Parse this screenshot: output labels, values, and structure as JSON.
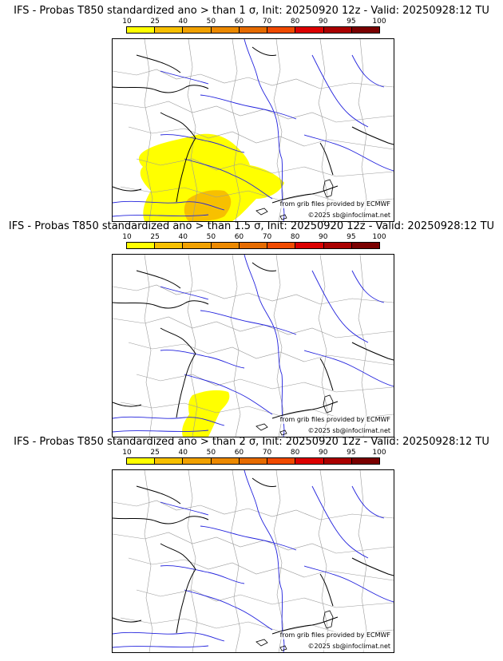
{
  "legend": {
    "ticks": [
      "10",
      "25",
      "40",
      "50",
      "60",
      "70",
      "80",
      "90",
      "95",
      "100"
    ],
    "colors": [
      "#ffff00",
      "#f7c000",
      "#f1a100",
      "#ec8900",
      "#e66b00",
      "#f04a00",
      "#dc0000",
      "#aa0000",
      "#7a0000"
    ]
  },
  "panels": [
    {
      "title": "IFS - Probas T850  standardized ano > than 1 σ, Init: 20250920 12z - Valid: 20250928:12 TU",
      "source": "from grib files provided by ECMWF",
      "copyright": "©2025 sb@infoclimat.net"
    },
    {
      "title": "IFS - Probas T850  standardized ano > than 1.5 σ, Init: 20250920 12z - Valid: 20250928:12 TU",
      "source": "from grib files provided by ECMWF",
      "copyright": "©2025 sb@infoclimat.net"
    },
    {
      "title": "IFS - Probas T850  standardized ano > than 2 σ, Init: 20250920 12z - Valid: 20250928:12 TU",
      "source": "from grib files provided by ECMWF",
      "copyright": "©2025 sb@infoclimat.net"
    }
  ],
  "colors": {
    "coast": "#000000",
    "rivers": "#2222dd",
    "borders": "#9a9a9a"
  }
}
